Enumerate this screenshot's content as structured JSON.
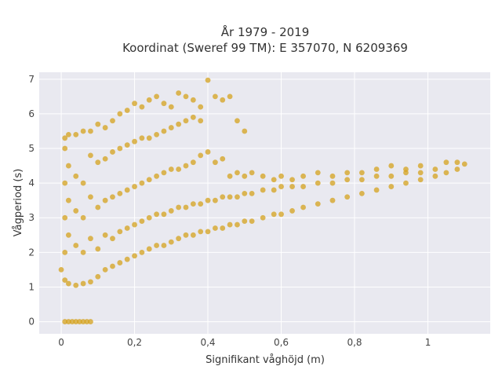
{
  "chart_data": {
    "type": "scatter",
    "title": [
      "År 1979 - 2019",
      "Koordinat (Sweref 99 TM): E 357070, N 6209369"
    ],
    "xlabel": "Signifikant våghöjd (m)",
    "ylabel": "Vågperiod (s)",
    "xlim": [
      -0.06,
      1.17
    ],
    "ylim": [
      -0.35,
      7.2
    ],
    "x_ticks": [
      0,
      0.2,
      0.4,
      0.6,
      0.8,
      1
    ],
    "x_tick_labels": [
      "0",
      "0,2",
      "0,4",
      "0,6",
      "0,8",
      "1"
    ],
    "y_ticks": [
      0,
      1,
      2,
      3,
      4,
      5,
      6,
      7
    ],
    "y_tick_labels": [
      "0",
      "1",
      "2",
      "3",
      "4",
      "5",
      "6",
      "7"
    ],
    "grid": true,
    "legend": "none",
    "background_color": "#e9e9f0",
    "marker_color": "#d4a21e",
    "series": [
      {
        "points": [
          [
            0.0,
            1.5
          ],
          [
            0.01,
            1.2
          ],
          [
            0.01,
            2.0
          ],
          [
            0.01,
            3.0
          ],
          [
            0.01,
            4.0
          ],
          [
            0.01,
            5.0
          ],
          [
            0.01,
            5.3
          ],
          [
            0.02,
            1.1
          ],
          [
            0.02,
            2.5
          ],
          [
            0.02,
            3.5
          ],
          [
            0.02,
            4.5
          ],
          [
            0.02,
            5.4
          ],
          [
            0.04,
            1.05
          ],
          [
            0.04,
            2.2
          ],
          [
            0.04,
            3.2
          ],
          [
            0.04,
            4.2
          ],
          [
            0.04,
            5.4
          ],
          [
            0.06,
            1.1
          ],
          [
            0.06,
            2.0
          ],
          [
            0.06,
            3.0
          ],
          [
            0.06,
            4.0
          ],
          [
            0.06,
            5.5
          ],
          [
            0.08,
            1.15
          ],
          [
            0.08,
            2.4
          ],
          [
            0.08,
            3.6
          ],
          [
            0.08,
            4.8
          ],
          [
            0.08,
            5.5
          ],
          [
            0.1,
            1.3
          ],
          [
            0.1,
            2.1
          ],
          [
            0.1,
            3.3
          ],
          [
            0.1,
            4.6
          ],
          [
            0.1,
            5.7
          ],
          [
            0.12,
            1.5
          ],
          [
            0.12,
            2.5
          ],
          [
            0.12,
            3.5
          ],
          [
            0.12,
            4.7
          ],
          [
            0.12,
            5.6
          ],
          [
            0.14,
            1.6
          ],
          [
            0.14,
            2.4
          ],
          [
            0.14,
            3.6
          ],
          [
            0.14,
            4.9
          ],
          [
            0.14,
            5.8
          ],
          [
            0.16,
            1.7
          ],
          [
            0.16,
            2.6
          ],
          [
            0.16,
            3.7
          ],
          [
            0.16,
            5.0
          ],
          [
            0.16,
            6.0
          ],
          [
            0.18,
            1.8
          ],
          [
            0.18,
            2.7
          ],
          [
            0.18,
            3.8
          ],
          [
            0.18,
            5.1
          ],
          [
            0.18,
            6.1
          ],
          [
            0.2,
            1.9
          ],
          [
            0.2,
            2.8
          ],
          [
            0.2,
            3.9
          ],
          [
            0.2,
            5.2
          ],
          [
            0.2,
            6.3
          ],
          [
            0.22,
            2.0
          ],
          [
            0.22,
            2.9
          ],
          [
            0.22,
            4.0
          ],
          [
            0.22,
            5.3
          ],
          [
            0.22,
            6.2
          ],
          [
            0.24,
            2.1
          ],
          [
            0.24,
            3.0
          ],
          [
            0.24,
            4.1
          ],
          [
            0.24,
            5.3
          ],
          [
            0.24,
            6.4
          ],
          [
            0.26,
            2.2
          ],
          [
            0.26,
            3.1
          ],
          [
            0.26,
            4.2
          ],
          [
            0.26,
            5.4
          ],
          [
            0.26,
            6.5
          ],
          [
            0.28,
            2.2
          ],
          [
            0.28,
            3.1
          ],
          [
            0.28,
            4.3
          ],
          [
            0.28,
            5.5
          ],
          [
            0.28,
            6.3
          ],
          [
            0.3,
            2.3
          ],
          [
            0.3,
            3.2
          ],
          [
            0.3,
            4.4
          ],
          [
            0.3,
            5.6
          ],
          [
            0.3,
            6.2
          ],
          [
            0.32,
            2.4
          ],
          [
            0.32,
            3.3
          ],
          [
            0.32,
            4.4
          ],
          [
            0.32,
            5.7
          ],
          [
            0.32,
            6.6
          ],
          [
            0.34,
            2.5
          ],
          [
            0.34,
            3.3
          ],
          [
            0.34,
            4.5
          ],
          [
            0.34,
            5.8
          ],
          [
            0.34,
            6.5
          ],
          [
            0.36,
            2.5
          ],
          [
            0.36,
            3.4
          ],
          [
            0.36,
            4.6
          ],
          [
            0.36,
            5.9
          ],
          [
            0.36,
            6.4
          ],
          [
            0.38,
            2.6
          ],
          [
            0.38,
            3.4
          ],
          [
            0.38,
            4.8
          ],
          [
            0.38,
            5.8
          ],
          [
            0.38,
            6.2
          ],
          [
            0.4,
            2.6
          ],
          [
            0.4,
            3.5
          ],
          [
            0.4,
            4.9
          ],
          [
            0.4,
            6.97
          ],
          [
            0.42,
            2.7
          ],
          [
            0.42,
            3.5
          ],
          [
            0.42,
            4.6
          ],
          [
            0.42,
            6.5
          ],
          [
            0.44,
            2.7
          ],
          [
            0.44,
            3.6
          ],
          [
            0.44,
            4.7
          ],
          [
            0.44,
            6.4
          ],
          [
            0.46,
            2.8
          ],
          [
            0.46,
            3.6
          ],
          [
            0.46,
            4.2
          ],
          [
            0.46,
            6.5
          ],
          [
            0.48,
            2.8
          ],
          [
            0.48,
            3.6
          ],
          [
            0.48,
            4.3
          ],
          [
            0.48,
            5.8
          ],
          [
            0.5,
            2.9
          ],
          [
            0.5,
            3.7
          ],
          [
            0.5,
            4.2
          ],
          [
            0.5,
            5.5
          ],
          [
            0.52,
            2.9
          ],
          [
            0.52,
            3.7
          ],
          [
            0.52,
            4.3
          ],
          [
            0.55,
            3.0
          ],
          [
            0.55,
            3.8
          ],
          [
            0.55,
            4.2
          ],
          [
            0.58,
            3.1
          ],
          [
            0.58,
            3.8
          ],
          [
            0.58,
            4.1
          ],
          [
            0.6,
            3.1
          ],
          [
            0.6,
            3.9
          ],
          [
            0.6,
            4.2
          ],
          [
            0.63,
            3.2
          ],
          [
            0.63,
            3.9
          ],
          [
            0.63,
            4.1
          ],
          [
            0.66,
            3.3
          ],
          [
            0.66,
            3.9
          ],
          [
            0.66,
            4.2
          ],
          [
            0.7,
            3.4
          ],
          [
            0.7,
            4.0
          ],
          [
            0.7,
            4.3
          ],
          [
            0.74,
            3.5
          ],
          [
            0.74,
            4.0
          ],
          [
            0.74,
            4.2
          ],
          [
            0.78,
            3.6
          ],
          [
            0.78,
            4.1
          ],
          [
            0.78,
            4.3
          ],
          [
            0.82,
            3.7
          ],
          [
            0.82,
            4.1
          ],
          [
            0.82,
            4.3
          ],
          [
            0.86,
            3.8
          ],
          [
            0.86,
            4.2
          ],
          [
            0.86,
            4.4
          ],
          [
            0.9,
            3.9
          ],
          [
            0.9,
            4.2
          ],
          [
            0.9,
            4.5
          ],
          [
            0.94,
            4.0
          ],
          [
            0.94,
            4.3
          ],
          [
            0.94,
            4.4
          ],
          [
            0.98,
            4.1
          ],
          [
            0.98,
            4.3
          ],
          [
            0.98,
            4.5
          ],
          [
            1.02,
            4.2
          ],
          [
            1.02,
            4.4
          ],
          [
            1.05,
            4.3
          ],
          [
            1.05,
            4.6
          ],
          [
            1.08,
            4.4
          ],
          [
            1.08,
            4.6
          ],
          [
            1.1,
            4.55
          ],
          [
            0.01,
            0.0
          ],
          [
            0.02,
            0.0
          ],
          [
            0.03,
            0.0
          ],
          [
            0.04,
            0.0
          ],
          [
            0.05,
            0.0
          ],
          [
            0.06,
            0.0
          ],
          [
            0.07,
            0.0
          ],
          [
            0.08,
            0.0
          ]
        ]
      }
    ]
  }
}
